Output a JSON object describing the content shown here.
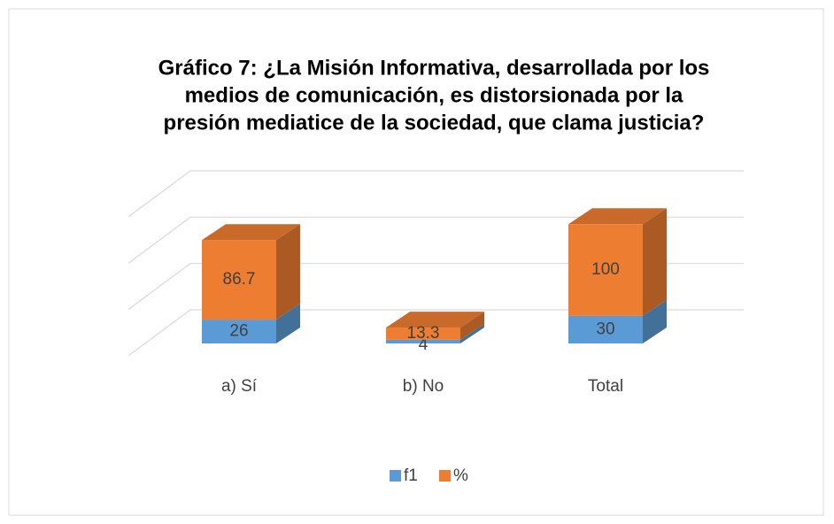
{
  "chart_data": {
    "type": "bar3d_stacked",
    "title": [
      "Gráfico 7: ¿La Misión Informativa, desarrollada por los",
      "medios de comunicación, es distorsionada por la",
      "presión mediatice de la sociedad, que clama justicia?"
    ],
    "categories": [
      "a) Sí",
      "b) No",
      "Total"
    ],
    "series": [
      {
        "name": "f1",
        "color": "#5b9bd5",
        "values": [
          26,
          4,
          30
        ]
      },
      {
        "name": "%",
        "color": "#ed7d31",
        "values": [
          86.7,
          13.3,
          100
        ]
      }
    ],
    "ylim": [
      0,
      150
    ],
    "yticks": [
      0,
      50,
      100,
      150
    ],
    "grid": true,
    "legend": "bottom"
  }
}
